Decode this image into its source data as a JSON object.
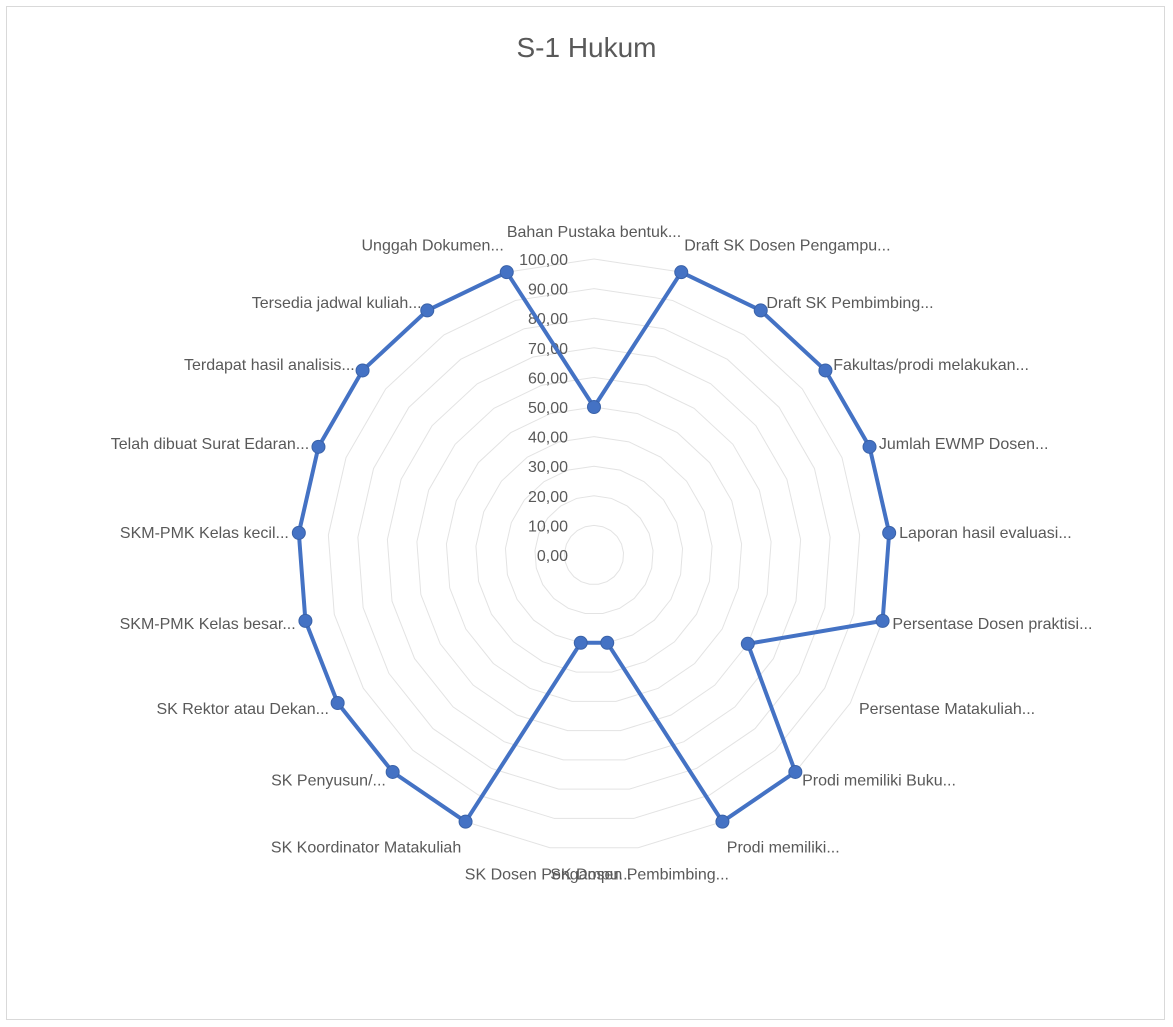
{
  "chart_data": {
    "type": "radar",
    "title": "S-1 Hukum",
    "rlim": [
      0,
      100
    ],
    "rticks": [
      "0,00",
      "10,00",
      "20,00",
      "30,00",
      "40,00",
      "50,00",
      "60,00",
      "70,00",
      "80,00",
      "90,00",
      "100,00"
    ],
    "grid": true,
    "legend": "none",
    "series_color": "#4472c4",
    "categories": [
      "Bahan Pustaka bentuk...",
      "Draft SK Dosen Pengampu...",
      "Draft SK Pembimbing...",
      "Fakultas/prodi melakukan...",
      "Jumlah EWMP Dosen...",
      "Laporan hasil evaluasi...",
      "Persentase Dosen praktisi...",
      "Persentase Matakuliah...",
      "Prodi memiliki Buku...",
      "Prodi memiliki...",
      "SK Dosen Pembimbing...",
      "SK Dosen Pengampu...",
      "SK Koordinator Matakuliah",
      "SK Penyusun/...",
      "SK Rektor atau Dekan...",
      "SKM-PMK Kelas besar...",
      "SKM-PMK Kelas kecil...",
      "Telah dibuat Surat Edaran...",
      "Terdapat hasil analisis...",
      "Tersedia jadwal kuliah...",
      "Unggah Dokumen..."
    ],
    "series": [
      {
        "values": [
          50,
          100,
          100,
          100,
          100,
          100,
          100,
          60,
          100,
          100,
          30,
          30,
          100,
          100,
          100,
          100,
          100,
          100,
          100,
          100,
          100
        ]
      }
    ]
  }
}
